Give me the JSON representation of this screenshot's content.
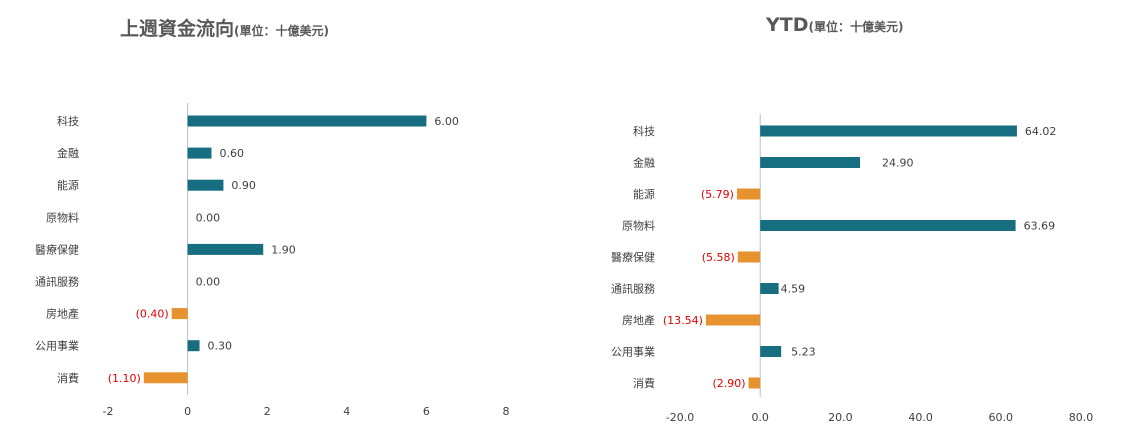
{
  "colors": {
    "positive": "#176E80",
    "negative": "#E6922E",
    "negative_label": "#E00000",
    "text": "#404040",
    "axis": "#BFBFBF"
  },
  "chart_data": [
    {
      "type": "bar",
      "orientation": "horizontal",
      "title": "上週資金流向",
      "unit": "(單位：十億美元)",
      "categories": [
        "科技",
        "金融",
        "能源",
        "原物料",
        "醫療保健",
        "通訊服務",
        "房地產",
        "公用事業",
        "消費"
      ],
      "values": [
        6.0,
        0.6,
        0.9,
        0.0,
        1.9,
        0.0,
        -0.4,
        0.3,
        -1.1
      ],
      "value_labels": [
        "6.00",
        "0.60",
        "0.90",
        "0.00",
        "1.90",
        "0.00",
        "(0.40)",
        "0.30",
        "(1.10)"
      ],
      "xlim": [
        -2,
        8
      ],
      "xticks": [
        -2,
        0,
        2,
        4,
        6,
        8
      ],
      "xtick_labels": [
        "-2",
        "0",
        "2",
        "4",
        "6",
        "8"
      ],
      "grid": false,
      "legend": "none"
    },
    {
      "type": "bar",
      "orientation": "horizontal",
      "title": "YTD",
      "unit": "(單位：十億美元)",
      "categories": [
        "科技",
        "金融",
        "能源",
        "原物料",
        "醫療保健",
        "通訊服務",
        "房地產",
        "公用事業",
        "消費"
      ],
      "values": [
        64.02,
        24.9,
        -5.79,
        63.69,
        -5.58,
        4.59,
        -13.54,
        5.23,
        -2.9
      ],
      "value_labels": [
        "64.02",
        "24.90",
        "(5.79)",
        "63.69",
        "(5.58)",
        "4.59",
        "(13.54)",
        "5.23",
        "(2.90)"
      ],
      "xlim": [
        -20,
        80
      ],
      "xticks": [
        -20,
        0,
        20,
        40,
        60,
        80
      ],
      "xtick_labels": [
        "-20.0",
        "0.0",
        "20.0",
        "40.0",
        "60.0",
        "80.0"
      ],
      "grid": false,
      "legend": "none"
    }
  ]
}
